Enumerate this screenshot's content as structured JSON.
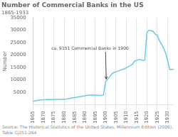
{
  "chart_data": {
    "type": "line",
    "title": "Number of Commercial Banks in the US",
    "subtitle": "1865-1933",
    "y_label": "Number",
    "source": "Source: The Historical Statistics of the United States, Millennium Edition (2006), Table Cj251-264",
    "annotation": {
      "text": "ca. 9151 Commercial Banks in 1900",
      "x": 1900,
      "y": 9151
    },
    "x": [
      1865,
      1866,
      1867,
      1868,
      1869,
      1870,
      1871,
      1872,
      1873,
      1874,
      1875,
      1876,
      1877,
      1878,
      1879,
      1880,
      1881,
      1882,
      1883,
      1884,
      1885,
      1886,
      1887,
      1888,
      1889,
      1890,
      1891,
      1892,
      1893,
      1894,
      1895,
      1896,
      1897,
      1898,
      1899,
      1900,
      1901,
      1902,
      1903,
      1904,
      1905,
      1906,
      1907,
      1908,
      1909,
      1910,
      1911,
      1912,
      1913,
      1914,
      1915,
      1916,
      1917,
      1918,
      1919,
      1920,
      1921,
      1922,
      1923,
      1924,
      1925,
      1926,
      1927,
      1928,
      1929,
      1930,
      1931,
      1932,
      1933
    ],
    "series": [
      {
        "name": "Number",
        "color": "#6cc8e8",
        "values": [
          1294,
          1500,
          1620,
          1760,
          1860,
          1937,
          1970,
          2032,
          1990,
          1985,
          2076,
          2091,
          2095,
          2060,
          2050,
          2076,
          2200,
          2350,
          2500,
          2700,
          2800,
          2900,
          3050,
          3200,
          3350,
          3484,
          3700,
          3800,
          3850,
          3780,
          3750,
          3700,
          3650,
          3700,
          3800,
          9151,
          10200,
          11200,
          12300,
          12900,
          13156,
          13500,
          13800,
          14100,
          14400,
          14800,
          15200,
          15700,
          16200,
          17498,
          17800,
          18100,
          18100,
          17800,
          18000,
          29000,
          30000,
          29800,
          29600,
          28500,
          28000,
          26000,
          24500,
          23000,
          21000,
          18000,
          14207,
          14207,
          14207
        ]
      }
    ],
    "xlim": [
      1865,
      1933
    ],
    "xticks": [
      1865,
      1870,
      1875,
      1880,
      1885,
      1890,
      1895,
      1900,
      1905,
      1910,
      1915,
      1920,
      1925,
      1930
    ],
    "ylim": [
      0,
      35000
    ],
    "yticks": [
      5000,
      10000,
      15000,
      20000,
      25000,
      30000,
      35000
    ],
    "grid": "x",
    "legend": false
  }
}
